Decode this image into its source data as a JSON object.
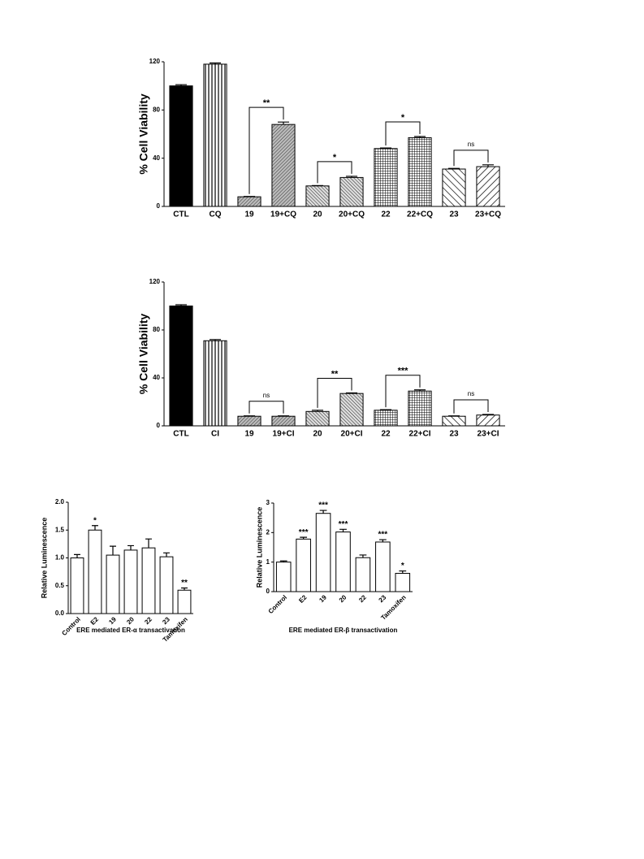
{
  "chart_data": [
    {
      "type": "bar",
      "ylabel": "% Cell Viability",
      "categories": [
        "CTL",
        "CQ",
        "19",
        "19+CQ",
        "20",
        "20+CQ",
        "22",
        "22+CQ",
        "23",
        "23+CQ"
      ],
      "values": [
        100,
        118,
        8,
        68,
        17,
        24,
        48,
        57,
        31,
        33
      ],
      "errors": [
        1,
        1,
        0.3,
        2,
        0.3,
        1,
        0.5,
        1,
        0.5,
        1.5
      ],
      "patterns": [
        "solid",
        "vertical",
        "hatch",
        "hatch",
        "dense",
        "dense",
        "grid",
        "grid",
        "backslash",
        "slash"
      ],
      "annotations": [
        null,
        null,
        null,
        "**",
        null,
        "*",
        null,
        "*",
        null,
        "ns"
      ],
      "bracket": true,
      "ylim": [
        0,
        120
      ],
      "yticks": [
        0,
        40,
        80,
        120
      ]
    },
    {
      "type": "bar",
      "ylabel": "% Cell Viability",
      "categories": [
        "CTL",
        "CI",
        "19",
        "19+CI",
        "20",
        "20+CI",
        "22",
        "22+CI",
        "23",
        "23+CI"
      ],
      "values": [
        100,
        71,
        8,
        8,
        12,
        27,
        13,
        29,
        8,
        9
      ],
      "errors": [
        1,
        1,
        0.3,
        0.3,
        1,
        0.5,
        0.5,
        1,
        0.3,
        0.5
      ],
      "patterns": [
        "solid",
        "vertical",
        "hatch",
        "hatch",
        "dense",
        "dense",
        "grid",
        "grid",
        "backslash",
        "slash"
      ],
      "annotations": [
        null,
        null,
        null,
        "ns",
        null,
        "**",
        null,
        "***",
        null,
        "ns"
      ],
      "bracket": true,
      "ylim": [
        0,
        120
      ],
      "yticks": [
        0,
        40,
        80,
        120
      ]
    },
    {
      "type": "bar",
      "ylabel": "Relative Luminescence",
      "xlabel": "ERE mediated ER-α transactivation",
      "categories": [
        "Control",
        "E2",
        "19",
        "20",
        "22",
        "23",
        "Tamoxifen"
      ],
      "values": [
        1.0,
        1.5,
        1.05,
        1.14,
        1.18,
        1.02,
        0.42
      ],
      "errors": [
        0.06,
        0.08,
        0.16,
        0.08,
        0.16,
        0.07,
        0.04
      ],
      "annotations": [
        null,
        "*",
        null,
        null,
        null,
        null,
        "**"
      ],
      "bracket": false,
      "ylim": [
        0,
        2
      ],
      "yticks": [
        {
          "value": 0,
          "label": "0.0"
        },
        {
          "value": 0.5,
          "label": "0.5"
        },
        {
          "value": 1,
          "label": "1.0"
        },
        {
          "value": 1.5,
          "label": "1.5"
        },
        {
          "value": 2,
          "label": "2.0"
        }
      ]
    },
    {
      "type": "bar",
      "ylabel": "Relative Luminescence",
      "xlabel": "ERE mediated ER-β transactivation",
      "categories": [
        "Control",
        "E2",
        "19",
        "20",
        "22",
        "23",
        "Tamoxifen"
      ],
      "values": [
        1.0,
        1.78,
        2.65,
        2.02,
        1.15,
        1.68,
        0.62
      ],
      "errors": [
        0.04,
        0.06,
        0.1,
        0.09,
        0.09,
        0.08,
        0.08
      ],
      "annotations": [
        null,
        "***",
        "***",
        "***",
        null,
        "***",
        "*"
      ],
      "bracket": false,
      "ylim": [
        0,
        3
      ],
      "yticks": [
        0,
        1,
        2,
        3
      ]
    }
  ]
}
